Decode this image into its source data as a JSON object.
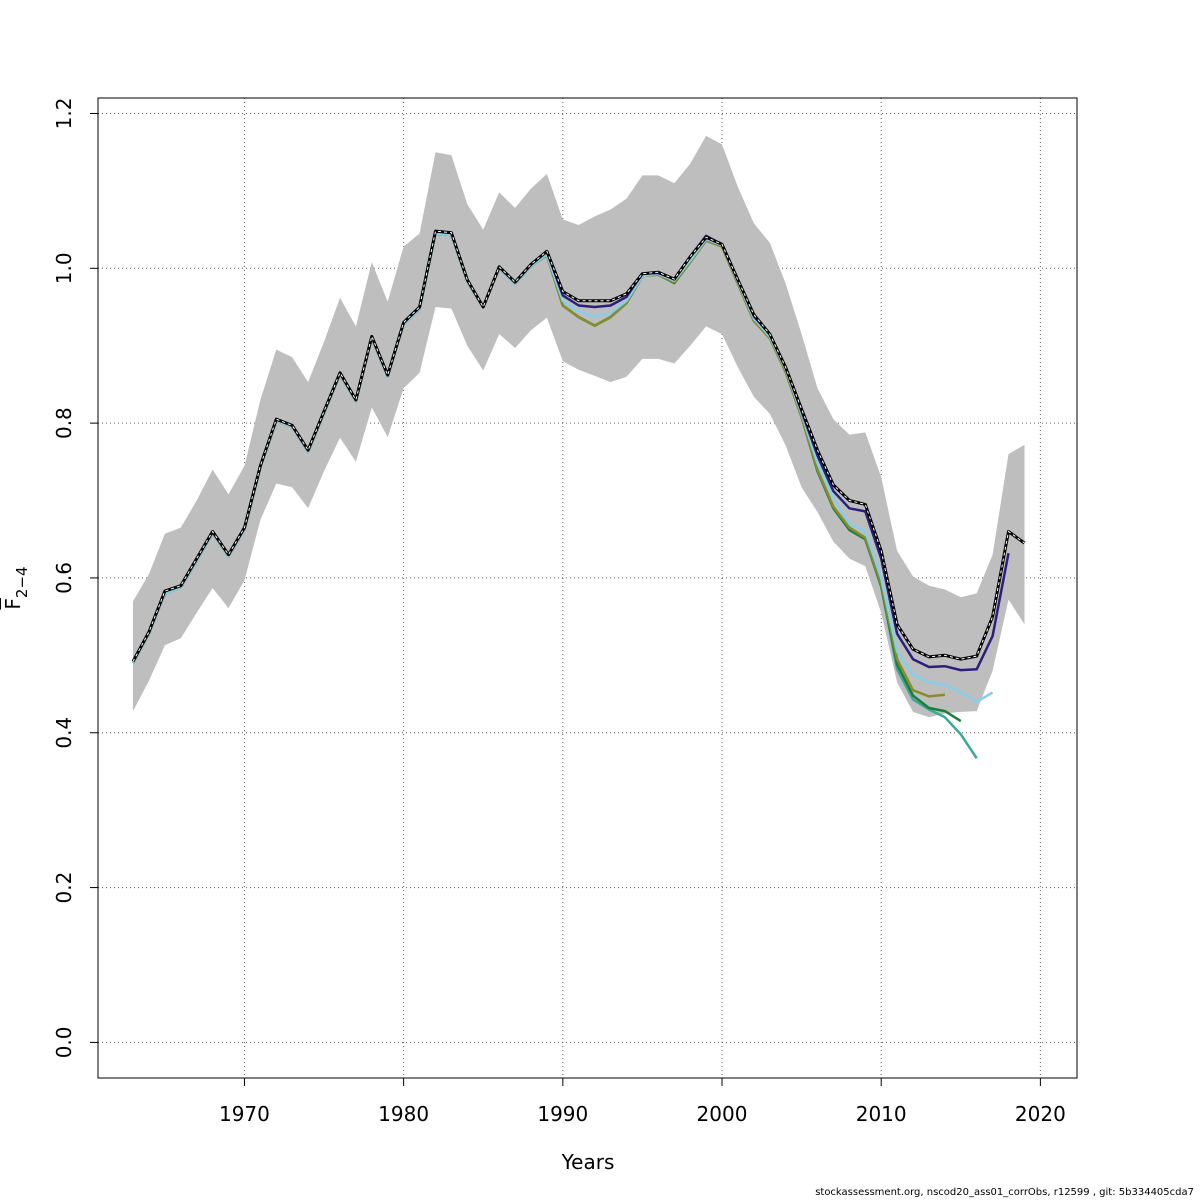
{
  "chart_data": {
    "type": "line",
    "title": "",
    "xlabel": "Years",
    "ylabel_base": "F",
    "ylabel_sub": "2−4",
    "xlim": [
      1960.8,
      2022.3
    ],
    "ylim": [
      -0.046,
      1.22
    ],
    "xticks": [
      1970,
      1980,
      1990,
      2000,
      2010,
      2020
    ],
    "yticks": [
      0.0,
      0.2,
      0.4,
      0.6,
      0.8,
      1.0,
      1.2
    ],
    "ytick_labels": [
      "0.0",
      "0.2",
      "0.4",
      "0.6",
      "0.8",
      "1.0",
      "1.2"
    ],
    "grid": true,
    "band": {
      "color": "#bebebe",
      "x": [
        1963,
        1964,
        1965,
        1966,
        1967,
        1968,
        1969,
        1970,
        1971,
        1972,
        1973,
        1974,
        1975,
        1976,
        1977,
        1978,
        1979,
        1980,
        1981,
        1982,
        1983,
        1984,
        1985,
        1986,
        1987,
        1988,
        1989,
        1990,
        1991,
        1992,
        1993,
        1994,
        1995,
        1996,
        1997,
        1998,
        1999,
        2000,
        2001,
        2002,
        2003,
        2004,
        2005,
        2006,
        2007,
        2008,
        2009,
        2010,
        2011,
        2012,
        2013,
        2014,
        2015,
        2016,
        2017,
        2018,
        2019
      ],
      "upper": [
        0.57,
        0.605,
        0.657,
        0.665,
        0.7,
        0.74,
        0.708,
        0.745,
        0.83,
        0.895,
        0.885,
        0.853,
        0.905,
        0.962,
        0.925,
        1.008,
        0.957,
        1.028,
        1.045,
        1.15,
        1.146,
        1.083,
        1.05,
        1.098,
        1.078,
        1.103,
        1.122,
        1.063,
        1.056,
        1.067,
        1.076,
        1.09,
        1.12,
        1.12,
        1.11,
        1.135,
        1.171,
        1.16,
        1.105,
        1.058,
        1.033,
        0.98,
        0.915,
        0.845,
        0.805,
        0.785,
        0.788,
        0.73,
        0.635,
        0.602,
        0.59,
        0.585,
        0.575,
        0.58,
        0.63,
        0.76,
        0.772
      ],
      "lower": [
        0.428,
        0.467,
        0.513,
        0.522,
        0.555,
        0.587,
        0.561,
        0.597,
        0.675,
        0.722,
        0.717,
        0.69,
        0.738,
        0.781,
        0.75,
        0.82,
        0.782,
        0.845,
        0.865,
        0.95,
        0.948,
        0.9,
        0.868,
        0.915,
        0.897,
        0.92,
        0.936,
        0.88,
        0.869,
        0.861,
        0.853,
        0.86,
        0.883,
        0.883,
        0.877,
        0.9,
        0.925,
        0.915,
        0.872,
        0.834,
        0.812,
        0.771,
        0.717,
        0.685,
        0.647,
        0.625,
        0.615,
        0.555,
        0.465,
        0.427,
        0.42,
        0.425,
        0.427,
        0.428,
        0.48,
        0.572,
        0.54
      ]
    },
    "series": [
      {
        "color": "#000000",
        "dashed": true,
        "width": 3,
        "x_start": 1963,
        "values": [
          0.492,
          0.53,
          0.583,
          0.59,
          0.625,
          0.66,
          0.63,
          0.665,
          0.745,
          0.805,
          0.797,
          0.765,
          0.815,
          0.865,
          0.83,
          0.912,
          0.862,
          0.93,
          0.95,
          1.048,
          1.046,
          0.985,
          0.95,
          1.002,
          0.982,
          1.005,
          1.022,
          0.97,
          0.958,
          0.958,
          0.958,
          0.967,
          0.993,
          0.995,
          0.986,
          1.015,
          1.04,
          1.031,
          0.985,
          0.94,
          0.915,
          0.872,
          0.818,
          0.765,
          0.72,
          0.7,
          0.695,
          0.635,
          0.54,
          0.508,
          0.498,
          0.5,
          0.495,
          0.499,
          0.55,
          0.66,
          0.645
        ]
      },
      {
        "color": "#2a1f7c",
        "dashed": false,
        "width": 2.5,
        "x_start": 1963,
        "values": [
          0.492,
          0.53,
          0.583,
          0.59,
          0.625,
          0.66,
          0.63,
          0.665,
          0.745,
          0.805,
          0.797,
          0.765,
          0.815,
          0.865,
          0.83,
          0.912,
          0.862,
          0.93,
          0.95,
          1.048,
          1.046,
          0.985,
          0.95,
          1.002,
          0.982,
          1.005,
          1.022,
          0.965,
          0.952,
          0.95,
          0.952,
          0.963,
          0.993,
          0.994,
          0.986,
          1.015,
          1.042,
          1.031,
          0.985,
          0.938,
          0.915,
          0.872,
          0.815,
          0.758,
          0.712,
          0.69,
          0.686,
          0.625,
          0.528,
          0.495,
          0.485,
          0.486,
          0.481,
          0.482,
          0.525,
          0.632
        ]
      },
      {
        "color": "#87ceeb",
        "dashed": false,
        "width": 2.5,
        "x_start": 1963,
        "values": [
          0.49,
          0.528,
          0.58,
          0.588,
          0.622,
          0.658,
          0.628,
          0.663,
          0.743,
          0.803,
          0.795,
          0.763,
          0.813,
          0.863,
          0.828,
          0.91,
          0.86,
          0.928,
          0.948,
          1.045,
          1.043,
          0.983,
          0.95,
          1.0,
          0.98,
          1.003,
          1.018,
          0.958,
          0.944,
          0.938,
          0.942,
          0.958,
          0.99,
          0.993,
          0.984,
          1.01,
          1.038,
          1.03,
          0.983,
          0.935,
          0.912,
          0.87,
          0.812,
          0.748,
          0.703,
          0.67,
          0.66,
          0.6,
          0.505,
          0.475,
          0.465,
          0.462,
          0.452,
          0.44,
          0.452
        ]
      },
      {
        "color": "#8b8b2e",
        "dashed": false,
        "width": 2.5,
        "x_start": 1963,
        "values": [
          0.49,
          0.528,
          0.58,
          0.588,
          0.622,
          0.658,
          0.628,
          0.663,
          0.743,
          0.803,
          0.795,
          0.763,
          0.813,
          0.863,
          0.828,
          0.91,
          0.86,
          0.928,
          0.948,
          1.045,
          1.043,
          0.983,
          0.95,
          1.0,
          0.98,
          1.003,
          1.017,
          0.952,
          0.937,
          0.926,
          0.937,
          0.955,
          0.99,
          0.992,
          0.982,
          1.008,
          1.036,
          1.028,
          0.98,
          0.932,
          0.91,
          0.866,
          0.808,
          0.74,
          0.692,
          0.665,
          0.652,
          0.592,
          0.495,
          0.455,
          0.447,
          0.449
        ]
      },
      {
        "color": "#1b7f3a",
        "dashed": false,
        "width": 2.5,
        "x_start": 1963,
        "values": [
          0.49,
          0.528,
          0.58,
          0.588,
          0.622,
          0.658,
          0.628,
          0.663,
          0.743,
          0.803,
          0.795,
          0.763,
          0.813,
          0.863,
          0.828,
          0.91,
          0.86,
          0.928,
          0.948,
          1.045,
          1.043,
          0.983,
          0.95,
          1.0,
          0.98,
          1.003,
          1.017,
          0.952,
          0.937,
          0.926,
          0.937,
          0.955,
          0.99,
          0.992,
          0.981,
          1.008,
          1.036,
          1.028,
          0.98,
          0.932,
          0.91,
          0.866,
          0.808,
          0.738,
          0.69,
          0.662,
          0.65,
          0.59,
          0.488,
          0.448,
          0.432,
          0.428,
          0.415
        ]
      },
      {
        "color": "#3aa89a",
        "dashed": false,
        "width": 2.5,
        "x_start": 1963,
        "values": [
          0.49,
          0.528,
          0.58,
          0.588,
          0.622,
          0.658,
          0.628,
          0.663,
          0.743,
          0.803,
          0.795,
          0.763,
          0.813,
          0.863,
          0.828,
          0.91,
          0.86,
          0.928,
          0.948,
          1.045,
          1.043,
          0.983,
          0.95,
          1.0,
          0.98,
          1.003,
          1.017,
          0.952,
          0.937,
          0.926,
          0.937,
          0.955,
          0.99,
          0.992,
          0.981,
          1.008,
          1.036,
          1.028,
          0.98,
          0.932,
          0.91,
          0.866,
          0.808,
          0.738,
          0.69,
          0.662,
          0.65,
          0.588,
          0.482,
          0.443,
          0.43,
          0.42,
          0.398,
          0.367
        ]
      },
      {
        "color": "#6aa83a",
        "dashed": false,
        "width": 2.5,
        "x_start": 1963,
        "values": [
          0.49,
          0.528,
          0.58,
          0.588,
          0.622,
          0.658,
          0.628,
          0.663,
          0.743,
          0.803,
          0.795,
          0.763,
          0.813,
          0.863,
          0.828,
          0.91,
          0.86,
          0.928,
          0.948,
          1.045,
          1.043,
          0.983,
          0.95,
          1.0,
          0.98,
          1.003,
          1.017,
          0.952,
          0.937,
          0.926,
          0.937,
          0.955,
          0.99,
          0.992,
          0.981,
          1.008,
          1.036,
          1.028,
          0.98,
          0.932,
          0.91,
          0.866,
          0.808,
          0.738,
          0.69,
          0.662,
          0.65,
          0.59,
          0.495
        ]
      }
    ]
  },
  "footer": "stockassessment.org, nscod20_ass01_corrObs, r12599 , git: 5b334405cda7"
}
